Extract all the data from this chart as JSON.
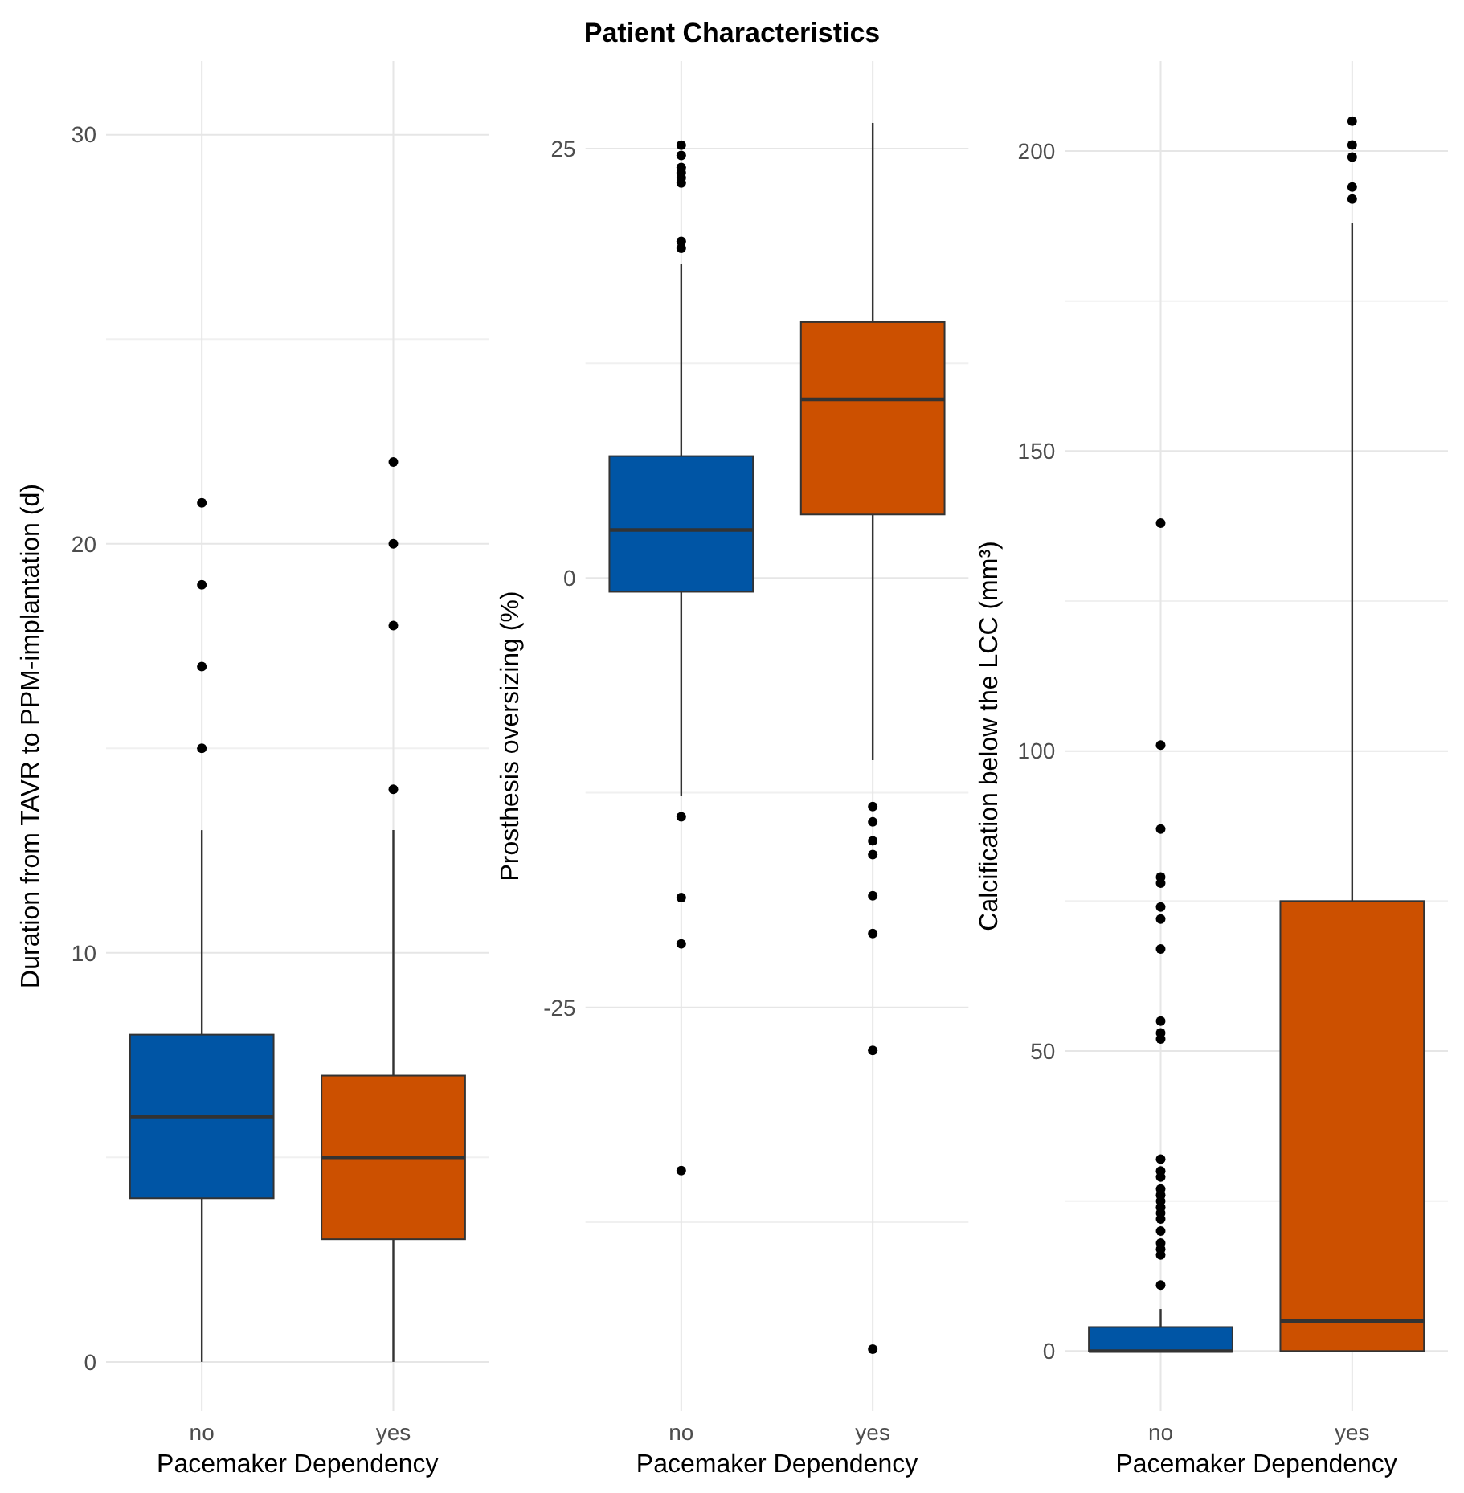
{
  "chart_data": [
    {
      "type": "box",
      "categories": [
        "no",
        "yes"
      ],
      "colors": [
        "#0055a5",
        "#cc5000"
      ],
      "xlabel": "Pacemaker Dependency",
      "ylabel": "Duration from TAVR to PPM-implantation (d)",
      "ylim": [
        -1.2,
        31.8
      ],
      "yticks": [
        0,
        {
          "value": 5,
          "label": null
        },
        10,
        {
          "value": 15,
          "label": null
        },
        20,
        {
          "value": 25,
          "label": null
        },
        30
      ],
      "grid": true,
      "boxes": [
        {
          "low": 0,
          "q1": 4,
          "median": 6,
          "q3": 8,
          "high": 13,
          "outliers": [
            15,
            17,
            19,
            21
          ]
        },
        {
          "low": 0,
          "q1": 3,
          "median": 5,
          "q3": 7,
          "high": 13,
          "outliers": [
            14,
            18,
            20,
            22
          ]
        }
      ]
    },
    {
      "type": "box",
      "title": "Patient Characteristics",
      "categories": [
        "no",
        "yes"
      ],
      "colors": [
        "#0055a5",
        "#cc5000"
      ],
      "xlabel": "Pacemaker Dependency",
      "ylabel": "Prosthesis oversizing (%)",
      "ylim": [
        -48.5,
        30.1
      ],
      "yticks": [
        {
          "value": -37.5,
          "label": null
        },
        -25,
        {
          "value": -12.5,
          "label": null
        },
        0,
        {
          "value": 12.5,
          "label": null
        },
        25
      ],
      "grid": true,
      "boxes": [
        {
          "low": -12.7,
          "q1": -0.8,
          "median": 2.8,
          "q3": 7.1,
          "high": 18.3,
          "outliers": [
            25.2,
            24.6,
            23.9,
            23.6,
            23.3,
            23.0,
            19.6,
            19.2,
            -13.9,
            -18.6,
            -21.3,
            -34.5
          ]
        },
        {
          "low": -10.6,
          "q1": 3.7,
          "median": 10.4,
          "q3": 14.9,
          "high": 26.5,
          "outliers": [
            -13.3,
            -14.2,
            -15.3,
            -16.1,
            -18.5,
            -20.7,
            -27.5,
            -44.9
          ]
        }
      ]
    },
    {
      "type": "box",
      "categories": [
        "no",
        "yes"
      ],
      "colors": [
        "#0055a5",
        "#cc5000"
      ],
      "xlabel": "Pacemaker Dependency",
      "ylabel": "Calcification below the LCC (mm³)",
      "ylim": [
        -10,
        215
      ],
      "yticks": [
        0,
        {
          "value": 25,
          "label": null
        },
        50,
        {
          "value": 75,
          "label": null
        },
        100,
        {
          "value": 125,
          "label": null
        },
        150,
        {
          "value": 175,
          "label": null
        },
        200
      ],
      "grid": true,
      "boxes": [
        {
          "low": 0,
          "q1": 0,
          "median": 0,
          "q3": 4,
          "high": 7,
          "outliers": [
            11,
            16,
            17,
            18,
            20,
            22,
            23,
            24,
            25,
            26,
            27,
            29,
            30,
            32,
            52,
            53,
            55,
            67,
            72,
            74,
            78,
            79,
            87,
            101,
            138
          ]
        },
        {
          "low": 0,
          "q1": 0,
          "median": 5,
          "q3": 75,
          "high": 188,
          "outliers": [
            192,
            194,
            199,
            201,
            205
          ]
        }
      ]
    }
  ]
}
